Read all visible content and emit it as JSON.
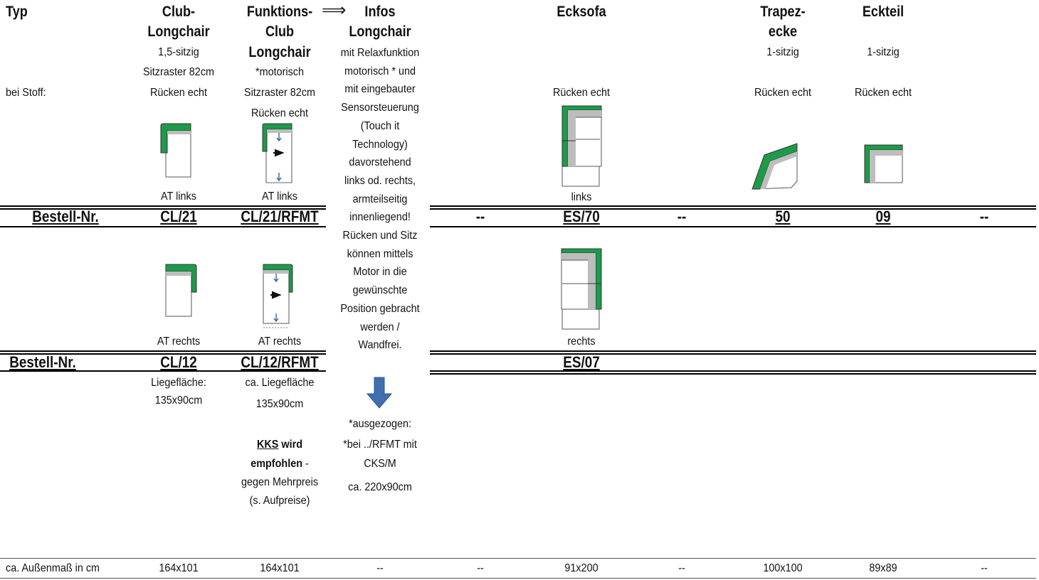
{
  "header": {
    "typ": "Typ",
    "bei_stoff": "bei Stoff:",
    "bestell": "Bestell-Nr.",
    "aussenmass": "ca. Außenmaß in cm"
  },
  "club_longchair": {
    "title1": "Club-",
    "title2": "Longchair",
    "line1": "1,5-sitzig",
    "line2": "Sitzraster 82cm",
    "ruecken": "Rücken echt",
    "at_links": "AT links",
    "at_rechts": "AT rechts",
    "order1": "CL/21",
    "order2": "CL/12",
    "liege1": "Liegefläche:",
    "liege2": "135x90cm",
    "mass": "164x101"
  },
  "funktions": {
    "title1": "Funktions-",
    "title2": "Club",
    "title3": "Longchair",
    "line1": "*motorisch",
    "line2": "Sitzraster 82cm",
    "ruecken": "Rücken echt",
    "at_links": "AT links",
    "at_rechts": "AT rechts",
    "order1": "CL/21/RFMT",
    "order2": "CL/12/RFMT",
    "liege1": "ca. Liegefläche",
    "liege2": "135x90cm",
    "kks": "KKS",
    "wird": " wird",
    "empfohlen": "empfohlen",
    "dash": " -",
    "gegen": "gegen Mehrpreis",
    "aufpreise": "(s. Aufpreise)",
    "mass": "164x101"
  },
  "infos": {
    "arrow": "⟹",
    "title1": "Infos",
    "title2": "Longchair",
    "lines": [
      "mit Relaxfunktion",
      "motorisch * und",
      "mit eingebauter",
      "Sensorsteuerung",
      "(Touch it",
      "Technology)",
      "davorstehend",
      "links od. rechts,",
      "armteilseitig",
      "innenliegend!",
      "Rücken und Sitz",
      "können mittels",
      "Motor in die",
      "gewünschte",
      "Position gebracht",
      "werden /",
      "Wandfrei."
    ],
    "ausgezogen": "*ausgezogen:",
    "bei_rfmt": "*bei ../RFMT mit",
    "cks": "CKS/M",
    "mass_ausgezogen": "ca. 220x90cm",
    "mass": "--"
  },
  "col_empty1": {
    "order1": "--",
    "mass": "--"
  },
  "ecksofa": {
    "title": "Ecksofa",
    "ruecken": "Rücken echt",
    "links": "links",
    "rechts": "rechts",
    "order1": "ES/70",
    "order2": "ES/07",
    "mass": "91x200"
  },
  "col_empty2": {
    "order1": "--",
    "mass": "--"
  },
  "trapez": {
    "title1": "Trapez-",
    "title2": "ecke",
    "line1": "1-sitzig",
    "ruecken": "Rücken echt",
    "order1": "50",
    "mass": "100x100"
  },
  "eckteil": {
    "title": "Eckteil",
    "line1": "1-sitzig",
    "ruecken": "Rücken echt",
    "order1": "09",
    "mass": "89x89"
  },
  "col_empty3": {
    "order1": "--",
    "mass": "--"
  },
  "colors": {
    "green": "#1e9a4b",
    "gray": "#bdbdbd",
    "arrow": "#3f6fae"
  }
}
